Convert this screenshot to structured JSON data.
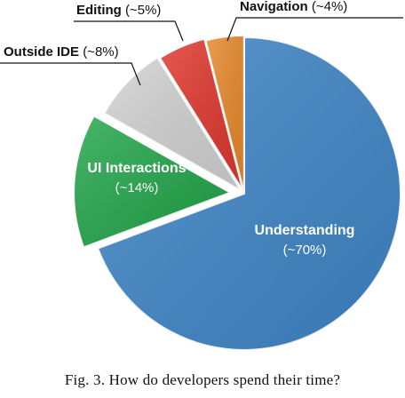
{
  "chart_data": {
    "type": "pie",
    "title": "",
    "slices": [
      {
        "label": "Understanding",
        "value_label": "(~70%)",
        "value": 70,
        "color": "#3f86c8",
        "label_style": "inside"
      },
      {
        "label": "UI Interactions",
        "value_label": "(~14%)",
        "value": 14,
        "color": "#22a64a",
        "label_style": "inside"
      },
      {
        "label": "Outside IDE",
        "value_label": "(~8%)",
        "value": 8,
        "color": "#d2d2d2",
        "label_style": "callout"
      },
      {
        "label": "Editing",
        "value_label": "(~5%)",
        "value": 5,
        "color": "#e0372d",
        "label_style": "callout"
      },
      {
        "label": "Navigation",
        "value_label": "(~4%)",
        "value": 4,
        "color": "#e8892b",
        "label_style": "callout"
      }
    ]
  },
  "caption": "Fig. 3.  How do developers spend their time?"
}
